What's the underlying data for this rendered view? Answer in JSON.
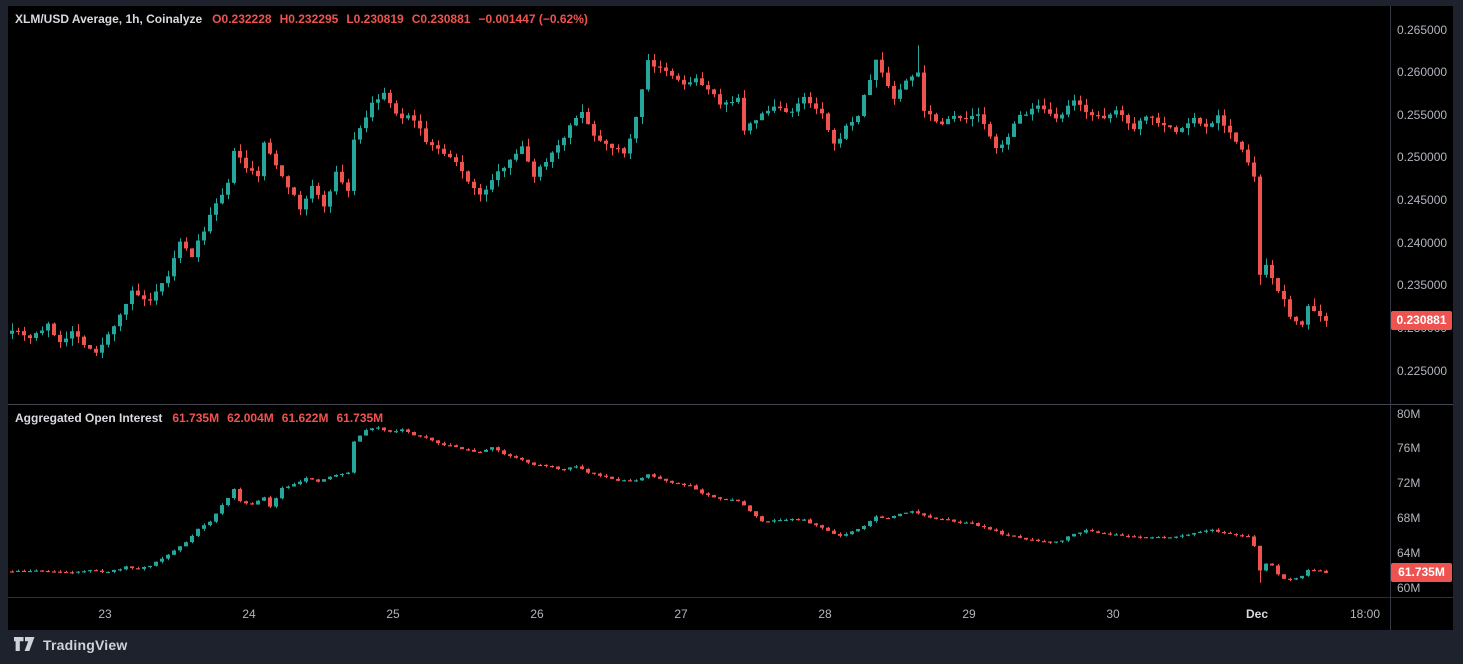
{
  "toolbar": {
    "brand": "TradingView"
  },
  "colors": {
    "up": "#26a69a",
    "down": "#ef5350",
    "tag_bg": "#ef5350",
    "background": "#000000",
    "frame": "#1e222d",
    "axis_text": "#b2b5be",
    "title_text": "#d8d9de",
    "value_text_red": "#ef5350"
  },
  "price_pane": {
    "legend": {
      "title": "XLM/USD Average, 1h, Coinalyze",
      "ohlc": [
        {
          "k": "O",
          "v": "0.232228"
        },
        {
          "k": "H",
          "v": "0.232295"
        },
        {
          "k": "L",
          "v": "0.230819"
        },
        {
          "k": "C",
          "v": "0.230881"
        }
      ],
      "change": "−0.001447 (−0.62%)"
    },
    "tag": "0.230881"
  },
  "oi_pane": {
    "legend": {
      "title": "Aggregated Open Interest",
      "values": [
        "61.735M",
        "62.004M",
        "61.622M",
        "61.735M"
      ]
    },
    "tag": "61.735M"
  },
  "chart_data": [
    {
      "type": "candlestick",
      "pane": "price",
      "title": "XLM/USD Average, 1h, Coinalyze",
      "symbol": "XLM/USD",
      "interval": "1h",
      "ohlc_last": {
        "open": 0.232228,
        "high": 0.232295,
        "low": 0.230819,
        "close": 0.230881,
        "change": -0.001447,
        "change_pct": -0.62
      },
      "ylim": [
        0.2211,
        0.2685
      ],
      "yticks": [
        {
          "v": 0.265,
          "label": "0.265000"
        },
        {
          "v": 0.26,
          "label": "0.260000"
        },
        {
          "v": 0.255,
          "label": "0.255000"
        },
        {
          "v": 0.25,
          "label": "0.250000"
        },
        {
          "v": 0.245,
          "label": "0.245000"
        },
        {
          "v": 0.24,
          "label": "0.240000"
        },
        {
          "v": 0.235,
          "label": "0.235000"
        },
        {
          "v": 0.23,
          "label": "0.230000"
        },
        {
          "v": 0.225,
          "label": "0.225000"
        }
      ],
      "x_ticks": [
        {
          "label": "23",
          "xi": 15.5
        },
        {
          "label": "24",
          "xi": 39.5
        },
        {
          "label": "25",
          "xi": 63.5
        },
        {
          "label": "26",
          "xi": 87.5
        },
        {
          "label": "27",
          "xi": 111.5
        },
        {
          "label": "28",
          "xi": 135.5
        },
        {
          "label": "29",
          "xi": 159.5
        },
        {
          "label": "30",
          "xi": 183.5
        },
        {
          "label": "Dec",
          "xi": 207.5,
          "major": true
        },
        {
          "label": "18:00",
          "xi": 225.5
        }
      ],
      "n_candles": 220,
      "last_close": 0.230881,
      "close_anchors": [
        [
          0,
          0.23
        ],
        [
          3,
          0.229
        ],
        [
          6,
          0.2303
        ],
        [
          8,
          0.2285
        ],
        [
          10,
          0.2296
        ],
        [
          14,
          0.227
        ],
        [
          16,
          0.2292
        ],
        [
          20,
          0.2342
        ],
        [
          23,
          0.233
        ],
        [
          26,
          0.2362
        ],
        [
          28,
          0.24
        ],
        [
          30,
          0.2385
        ],
        [
          33,
          0.2432
        ],
        [
          36,
          0.2468
        ],
        [
          37,
          0.251
        ],
        [
          39,
          0.2487
        ],
        [
          41,
          0.248
        ],
        [
          42,
          0.2516
        ],
        [
          43,
          0.2505
        ],
        [
          46,
          0.2468
        ],
        [
          48,
          0.244
        ],
        [
          50,
          0.2466
        ],
        [
          52,
          0.2444
        ],
        [
          54,
          0.2482
        ],
        [
          56,
          0.2462
        ],
        [
          57,
          0.2522
        ],
        [
          60,
          0.2562
        ],
        [
          62,
          0.2576
        ],
        [
          64,
          0.255
        ],
        [
          67,
          0.2546
        ],
        [
          69,
          0.252
        ],
        [
          72,
          0.2504
        ],
        [
          74,
          0.2494
        ],
        [
          76,
          0.2474
        ],
        [
          78,
          0.2455
        ],
        [
          81,
          0.2482
        ],
        [
          83,
          0.25
        ],
        [
          85,
          0.2512
        ],
        [
          87,
          0.248
        ],
        [
          90,
          0.2506
        ],
        [
          92,
          0.2526
        ],
        [
          95,
          0.2556
        ],
        [
          97,
          0.2526
        ],
        [
          100,
          0.2514
        ],
        [
          102,
          0.2504
        ],
        [
          104,
          0.2546
        ],
        [
          106,
          0.2616
        ],
        [
          107,
          0.2608
        ],
        [
          109,
          0.26
        ],
        [
          112,
          0.2586
        ],
        [
          114,
          0.2592
        ],
        [
          117,
          0.2574
        ],
        [
          118,
          0.256
        ],
        [
          121,
          0.2572
        ],
        [
          122,
          0.253
        ],
        [
          124,
          0.2546
        ],
        [
          127,
          0.256
        ],
        [
          130,
          0.2554
        ],
        [
          132,
          0.257
        ],
        [
          135,
          0.255
        ],
        [
          137,
          0.2514
        ],
        [
          139,
          0.2536
        ],
        [
          141,
          0.255
        ],
        [
          144,
          0.2614
        ],
        [
          145,
          0.26
        ],
        [
          147,
          0.257
        ],
        [
          149,
          0.259
        ],
        [
          151,
          0.2602
        ],
        [
          152,
          0.2556
        ],
        [
          155,
          0.254
        ],
        [
          157,
          0.2552
        ],
        [
          159,
          0.2544
        ],
        [
          161,
          0.2552
        ],
        [
          164,
          0.251
        ],
        [
          166,
          0.2526
        ],
        [
          168,
          0.255
        ],
        [
          171,
          0.256
        ],
        [
          174,
          0.2544
        ],
        [
          177,
          0.2566
        ],
        [
          179,
          0.2556
        ],
        [
          182,
          0.2544
        ],
        [
          184,
          0.2556
        ],
        [
          187,
          0.2536
        ],
        [
          189,
          0.255
        ],
        [
          192,
          0.254
        ],
        [
          194,
          0.253
        ],
        [
          197,
          0.2546
        ],
        [
          199,
          0.2536
        ],
        [
          201,
          0.255
        ],
        [
          203,
          0.253
        ],
        [
          205,
          0.2508
        ],
        [
          207,
          0.2478
        ],
        [
          208,
          0.2362
        ],
        [
          209,
          0.2372
        ],
        [
          211,
          0.2346
        ],
        [
          212,
          0.2332
        ],
        [
          213,
          0.2312
        ],
        [
          215,
          0.2306
        ],
        [
          216,
          0.2326
        ],
        [
          217,
          0.2318
        ],
        [
          218,
          0.2312
        ],
        [
          219,
          0.230881
        ]
      ],
      "wick_overrides": {
        "106": {
          "high": 0.2622
        },
        "151": {
          "high": 0.2632
        },
        "208": {
          "low": 0.2351
        }
      }
    },
    {
      "type": "candlestick",
      "pane": "oi",
      "title": "Aggregated Open Interest",
      "unit": "M",
      "ohlc_last": {
        "open": 61.735,
        "high": 62.004,
        "low": 61.622,
        "close": 61.735
      },
      "ylim": [
        59.0,
        81.2
      ],
      "yticks": [
        {
          "v": 80,
          "label": "80M"
        },
        {
          "v": 76,
          "label": "76M"
        },
        {
          "v": 72,
          "label": "72M"
        },
        {
          "v": 68,
          "label": "68M"
        },
        {
          "v": 64,
          "label": "64M"
        },
        {
          "v": 60,
          "label": "60M"
        }
      ],
      "n_candles": 220,
      "last_close": 61.735,
      "close_anchors": [
        [
          0,
          61.9
        ],
        [
          5,
          62.0
        ],
        [
          8,
          61.8
        ],
        [
          13,
          62.0
        ],
        [
          16,
          61.85
        ],
        [
          19,
          62.4
        ],
        [
          21,
          62.2
        ],
        [
          23,
          62.6
        ],
        [
          26,
          63.8
        ],
        [
          29,
          65.3
        ],
        [
          31,
          66.8
        ],
        [
          33,
          67.6
        ],
        [
          35,
          69.5
        ],
        [
          37,
          71.3
        ],
        [
          38,
          70.0
        ],
        [
          40,
          69.6
        ],
        [
          42,
          70.4
        ],
        [
          43,
          69.3
        ],
        [
          45,
          71.5
        ],
        [
          47,
          72.0
        ],
        [
          49,
          72.6
        ],
        [
          51,
          72.2
        ],
        [
          53,
          72.8
        ],
        [
          55,
          73.1
        ],
        [
          56,
          73.3
        ],
        [
          57,
          76.8
        ],
        [
          59,
          78.2
        ],
        [
          61,
          78.4
        ],
        [
          63,
          78.0
        ],
        [
          65,
          78.2
        ],
        [
          67,
          77.6
        ],
        [
          69,
          77.2
        ],
        [
          71,
          76.6
        ],
        [
          74,
          76.2
        ],
        [
          76,
          75.8
        ],
        [
          78,
          75.6
        ],
        [
          80,
          76.2
        ],
        [
          82,
          75.4
        ],
        [
          85,
          74.8
        ],
        [
          87,
          74.2
        ],
        [
          90,
          73.9
        ],
        [
          92,
          73.6
        ],
        [
          94,
          74.0
        ],
        [
          96,
          73.3
        ],
        [
          99,
          72.8
        ],
        [
          101,
          72.4
        ],
        [
          104,
          72.3
        ],
        [
          106,
          73.0
        ],
        [
          108,
          72.6
        ],
        [
          110,
          72.1
        ],
        [
          113,
          71.8
        ],
        [
          115,
          70.9
        ],
        [
          117,
          70.4
        ],
        [
          119,
          70.2
        ],
        [
          121,
          70.0
        ],
        [
          123,
          68.9
        ],
        [
          125,
          67.6
        ],
        [
          127,
          67.8
        ],
        [
          130,
          67.9
        ],
        [
          132,
          67.8
        ],
        [
          134,
          67.2
        ],
        [
          136,
          66.6
        ],
        [
          138,
          66.0
        ],
        [
          140,
          66.5
        ],
        [
          142,
          67.2
        ],
        [
          144,
          68.2
        ],
        [
          146,
          68.0
        ],
        [
          148,
          68.5
        ],
        [
          150,
          68.9
        ],
        [
          152,
          68.3
        ],
        [
          154,
          67.9
        ],
        [
          156,
          67.8
        ],
        [
          158,
          67.6
        ],
        [
          160,
          67.4
        ],
        [
          163,
          66.8
        ],
        [
          165,
          66.2
        ],
        [
          167,
          65.9
        ],
        [
          169,
          65.6
        ],
        [
          171,
          65.4
        ],
        [
          173,
          65.3
        ],
        [
          175,
          65.5
        ],
        [
          177,
          66.3
        ],
        [
          179,
          66.6
        ],
        [
          181,
          66.4
        ],
        [
          183,
          66.2
        ],
        [
          185,
          66.0
        ],
        [
          188,
          65.9
        ],
        [
          191,
          65.8
        ],
        [
          194,
          65.9
        ],
        [
          196,
          66.2
        ],
        [
          198,
          66.5
        ],
        [
          200,
          66.7
        ],
        [
          202,
          66.3
        ],
        [
          204,
          66.1
        ],
        [
          206,
          65.9
        ],
        [
          207,
          64.8
        ],
        [
          208,
          62.0
        ],
        [
          209,
          62.8
        ],
        [
          210,
          62.6
        ],
        [
          211,
          61.6
        ],
        [
          212,
          61.0
        ],
        [
          214,
          61.1
        ],
        [
          215,
          61.4
        ],
        [
          216,
          62.0
        ],
        [
          217,
          62.1
        ],
        [
          218,
          61.9
        ],
        [
          219,
          61.735
        ]
      ],
      "wick_overrides": {
        "208": {
          "low": 60.6
        }
      }
    }
  ]
}
